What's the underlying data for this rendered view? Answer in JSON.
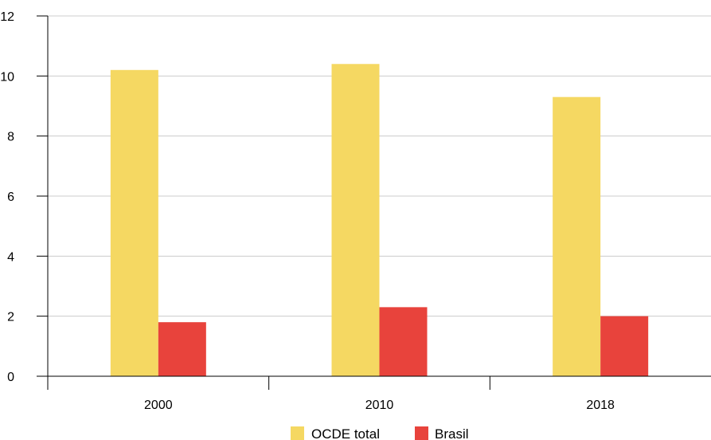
{
  "chart_data": {
    "type": "bar",
    "title": "",
    "xlabel": "",
    "ylabel": "",
    "categories": [
      "2000",
      "2010",
      "2018"
    ],
    "series": [
      {
        "name": "OCDE total",
        "values": [
          10.2,
          10.4,
          9.3
        ],
        "color": "#f5d862"
      },
      {
        "name": "Brasil",
        "values": [
          1.8,
          2.3,
          2.0
        ],
        "color": "#e8433c"
      }
    ],
    "ylim": [
      0,
      12
    ],
    "yticks": [
      0,
      2,
      4,
      6,
      8,
      10,
      12
    ],
    "grid": true,
    "legend": "bottom-center"
  }
}
